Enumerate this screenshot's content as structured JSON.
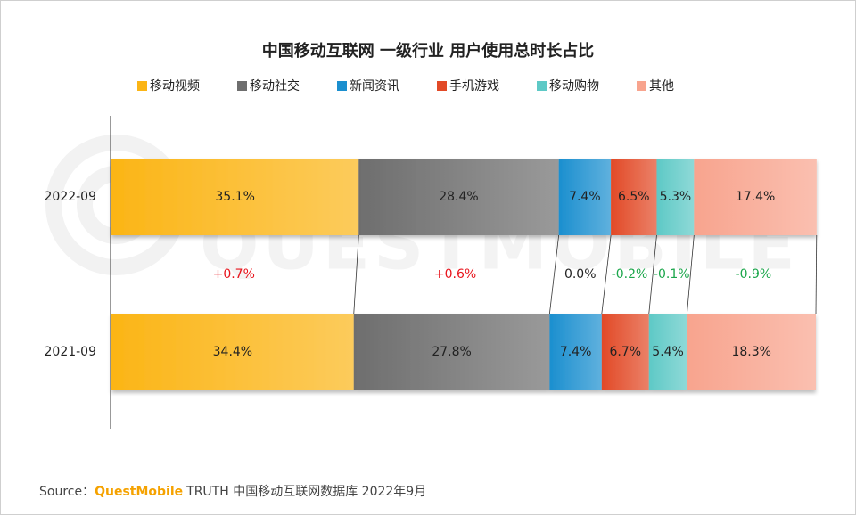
{
  "chart_data": {
    "type": "stacked-bar-horizontal",
    "title": "中国移动互联网 一级行业 用户使用总时长占比",
    "categories": [
      "2022-09",
      "2021-09"
    ],
    "xlim": [
      0,
      100
    ],
    "series": [
      {
        "name": "移动视频",
        "color": "#fbb516",
        "values": [
          35.1,
          34.4
        ],
        "value_labels": [
          "35.1%",
          "34.4%"
        ]
      },
      {
        "name": "移动社交",
        "color": "#6e6e6e",
        "values": [
          28.4,
          27.8
        ],
        "value_labels": [
          "28.4%",
          "27.8%"
        ]
      },
      {
        "name": "新闻资讯",
        "color": "#1b8fcf",
        "values": [
          7.4,
          7.4
        ],
        "value_labels": [
          "7.4%",
          "7.4%"
        ]
      },
      {
        "name": "手机游戏",
        "color": "#e24a27",
        "values": [
          6.5,
          6.7
        ],
        "value_labels": [
          "6.5%",
          "6.7%"
        ]
      },
      {
        "name": "移动购物",
        "color": "#5ec9c6",
        "values": [
          5.3,
          5.4
        ],
        "value_labels": [
          "5.3%",
          "5.4%"
        ]
      },
      {
        "name": "其他",
        "color": "#f8a48e",
        "values": [
          17.4,
          18.3
        ],
        "value_labels": [
          "17.4%",
          "18.3%"
        ]
      }
    ],
    "changes": {
      "values": [
        0.7,
        0.6,
        0.0,
        -0.2,
        -0.1,
        -0.9
      ],
      "value_labels": [
        "+0.7%",
        "+0.6%",
        "0.0%",
        "-0.2%",
        "-0.1%",
        "-0.9%"
      ]
    },
    "watermark": "QUESTMOBILE",
    "source": {
      "label": "Source：",
      "brand": "QuestMobile",
      "text": "TRUTH 中国移动互联网数据库 2022年9月"
    }
  }
}
